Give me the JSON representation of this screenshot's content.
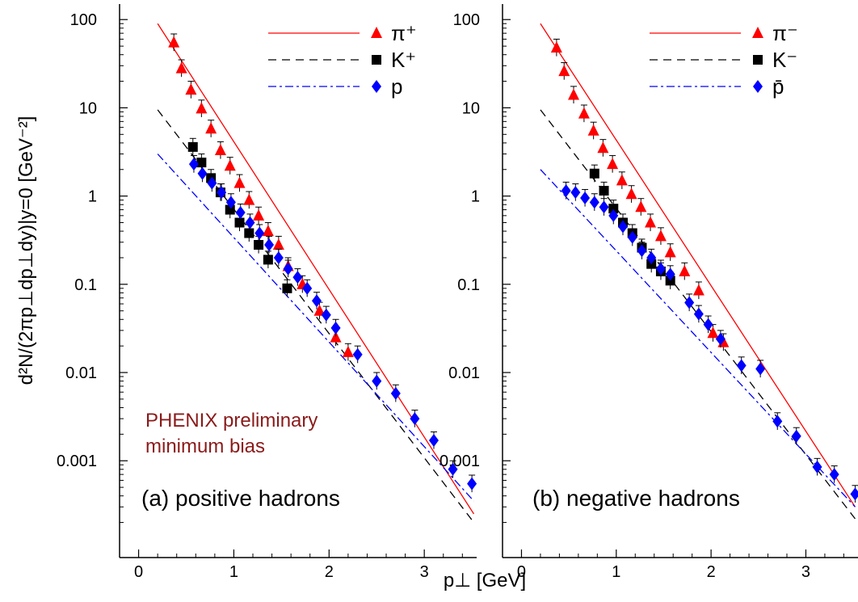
{
  "colors": {
    "pion": "#ff0000",
    "kaon": "#000000",
    "proton": "#0000ff",
    "note": "#8b1a1a"
  },
  "shared": {
    "ylabel": "d²N/(2πp⊥dp⊥dy)|y=0  [GeV⁻²]",
    "xlabel": "p⊥ [GeV]",
    "note_line1": "PHENIX preliminary",
    "note_line2": "minimum bias"
  },
  "chart_data": [
    {
      "type": "scatter",
      "panel": "a",
      "annotation": "(a) positive hadrons",
      "xlim": [
        -0.2,
        3.55
      ],
      "ylim": [
        8e-05,
        150
      ],
      "yscale": "log",
      "xticks": [
        "0",
        "1",
        "2",
        "3"
      ],
      "yticks": [
        "0.001",
        "0.01",
        "0.1",
        "1",
        "10",
        "100"
      ],
      "ytick_values": [
        0.001,
        0.01,
        0.1,
        1,
        10,
        100
      ],
      "legend_position": "top-right",
      "series": [
        {
          "name": "π⁺",
          "kind": "pion",
          "x": [
            0.37,
            0.45,
            0.55,
            0.66,
            0.76,
            0.86,
            0.96,
            1.06,
            1.16,
            1.26,
            1.36,
            1.47,
            1.57,
            1.72,
            1.9,
            2.07,
            2.2
          ],
          "y": [
            55,
            28,
            16,
            9.8,
            5.8,
            3.3,
            2.2,
            1.4,
            0.9,
            0.6,
            0.4,
            0.28,
            0.16,
            0.1,
            0.05,
            0.025,
            0.017
          ],
          "fit": {
            "x0": 0.2,
            "x1": 3.52,
            "y0": 90,
            "y1": 0.00025
          }
        },
        {
          "name": "K⁺",
          "kind": "kaon",
          "x": [
            0.57,
            0.66,
            0.76,
            0.86,
            0.96,
            1.06,
            1.16,
            1.26,
            1.36,
            1.56
          ],
          "y": [
            3.6,
            2.4,
            1.6,
            1.1,
            0.7,
            0.5,
            0.38,
            0.28,
            0.19,
            0.09
          ],
          "fit": {
            "x0": 0.2,
            "x1": 3.52,
            "y0": 9.5,
            "y1": 0.0002
          }
        },
        {
          "name": "p",
          "kind": "proton",
          "x": [
            0.58,
            0.67,
            0.77,
            0.87,
            0.97,
            1.07,
            1.17,
            1.27,
            1.37,
            1.47,
            1.57,
            1.67,
            1.77,
            1.87,
            1.97,
            2.07,
            2.3,
            2.5,
            2.7,
            2.9,
            3.1,
            3.3,
            3.5
          ],
          "y": [
            2.3,
            1.8,
            1.4,
            1.1,
            0.85,
            0.65,
            0.5,
            0.38,
            0.28,
            0.2,
            0.15,
            0.12,
            0.09,
            0.065,
            0.045,
            0.032,
            0.016,
            0.008,
            0.0058,
            0.003,
            0.0017,
            0.0008,
            0.00055
          ],
          "fit": {
            "x0": 0.2,
            "x1": 3.52,
            "y0": 3.0,
            "y1": 0.00035
          }
        }
      ]
    },
    {
      "type": "scatter",
      "panel": "b",
      "annotation": "(b) negative hadrons",
      "xlim": [
        -0.2,
        3.55
      ],
      "ylim": [
        8e-05,
        150
      ],
      "yscale": "log",
      "xticks": [
        "0",
        "1",
        "2",
        "3"
      ],
      "yticks": [
        "0.001",
        "0.01",
        "0.1",
        "1",
        "10",
        "100"
      ],
      "ytick_values": [
        0.001,
        0.01,
        0.1,
        1,
        10,
        100
      ],
      "legend_position": "top-right",
      "series": [
        {
          "name": "π⁻",
          "kind": "pion",
          "x": [
            0.37,
            0.45,
            0.55,
            0.66,
            0.76,
            0.86,
            0.96,
            1.06,
            1.16,
            1.26,
            1.36,
            1.47,
            1.57,
            1.72,
            1.87,
            2.02,
            2.13
          ],
          "y": [
            48,
            26,
            14,
            8.6,
            5.5,
            3.5,
            2.3,
            1.5,
            1.05,
            0.75,
            0.5,
            0.35,
            0.23,
            0.14,
            0.085,
            0.028,
            0.022
          ],
          "fit": {
            "x0": 0.2,
            "x1": 3.52,
            "y0": 90,
            "y1": 0.0003
          }
        },
        {
          "name": "K⁻",
          "kind": "kaon",
          "x": [
            0.77,
            0.87,
            0.97,
            1.07,
            1.17,
            1.27,
            1.37,
            1.47,
            1.57
          ],
          "y": [
            1.8,
            1.15,
            0.72,
            0.5,
            0.38,
            0.26,
            0.17,
            0.14,
            0.11
          ],
          "fit": {
            "x0": 0.2,
            "x1": 3.52,
            "y0": 9.5,
            "y1": 0.00022
          }
        },
        {
          "name": "p̄",
          "kind": "proton",
          "x": [
            0.47,
            0.57,
            0.67,
            0.77,
            0.87,
            0.97,
            1.07,
            1.17,
            1.27,
            1.37,
            1.47,
            1.57,
            1.77,
            1.87,
            1.97,
            2.1,
            2.32,
            2.52,
            2.7,
            2.9,
            3.12,
            3.3,
            3.52
          ],
          "y": [
            1.15,
            1.1,
            0.95,
            0.85,
            0.75,
            0.6,
            0.45,
            0.34,
            0.24,
            0.2,
            0.15,
            0.13,
            0.062,
            0.046,
            0.035,
            0.024,
            0.012,
            0.011,
            0.0028,
            0.0019,
            0.00085,
            0.0007,
            0.00042
          ],
          "fit": {
            "x0": 0.2,
            "x1": 3.52,
            "y0": 2.0,
            "y1": 0.0003
          }
        }
      ]
    }
  ]
}
